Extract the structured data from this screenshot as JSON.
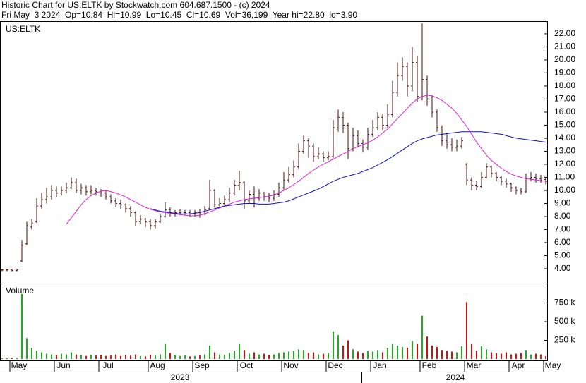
{
  "header": {
    "title": "Historic Chart for US:ELTK by Stockwatch.com 604.687.1500 - (c) 2024",
    "quote": "Fri May  3 2024  Op=10.84  Hi=10.99  Lo=10.45  Cl=10.69  Vol=36,199  Year hi=22.80  lo=3.90"
  },
  "chart_data": {
    "type": "ohlc",
    "symbol": "US:ELTK",
    "volume_title": "Volume",
    "years": [
      "2023",
      "2024"
    ],
    "bar_color": "#4a1010",
    "up_color": "#22aa22",
    "down_color": "#cc1111",
    "categories": [
      null,
      null,
      "May",
      null,
      null,
      null,
      null,
      null,
      null,
      null,
      null,
      "Jun",
      null,
      null,
      null,
      null,
      null,
      null,
      null,
      null,
      "Jul",
      null,
      null,
      null,
      null,
      null,
      null,
      null,
      null,
      null,
      "Aug",
      null,
      null,
      null,
      null,
      null,
      null,
      null,
      null,
      "Sep",
      null,
      null,
      null,
      null,
      null,
      null,
      null,
      null,
      "Oct",
      null,
      null,
      null,
      null,
      null,
      null,
      null,
      null,
      "Nov",
      null,
      null,
      null,
      null,
      null,
      null,
      null,
      null,
      "Dec",
      null,
      null,
      null,
      null,
      null,
      null,
      null,
      null,
      "Jan",
      null,
      null,
      null,
      null,
      null,
      null,
      null,
      null,
      null,
      "Feb",
      null,
      null,
      null,
      null,
      null,
      null,
      null,
      null,
      "Mar",
      null,
      null,
      null,
      null,
      null,
      null,
      null,
      null,
      "Apr",
      null,
      null,
      null,
      null,
      null,
      null,
      "May"
    ],
    "open": [
      3.9,
      3.9,
      3.9,
      3.85,
      4.6,
      5.9,
      7.2,
      7.6,
      8.8,
      9.3,
      9.5,
      10.0,
      9.8,
      10.0,
      10.2,
      10.6,
      10.0,
      10.2,
      9.9,
      10.0,
      9.9,
      9.8,
      9.5,
      9.2,
      9.0,
      8.9,
      8.6,
      8.3,
      7.6,
      7.8,
      7.6,
      7.3,
      7.6,
      8.0,
      8.5,
      8.2,
      8.3,
      8.3,
      8.3,
      8.2,
      8.3,
      8.2,
      8.6,
      10.0,
      8.9,
      9.0,
      9.3,
      9.8,
      10.4,
      10.6,
      9.2,
      9.7,
      9.4,
      9.8,
      9.5,
      9.4,
      9.7,
      10.2,
      10.8,
      11.2,
      11.8,
      13.0,
      13.8,
      13.4,
      12.6,
      12.8,
      12.5,
      12.6,
      14.8,
      15.6,
      15.0,
      13.2,
      14.2,
      13.6,
      13.3,
      14.3,
      14.8,
      15.6,
      15.0,
      15.8,
      17.5,
      18.8,
      19.5,
      18.0,
      19.8,
      17.2,
      18.5,
      17.0,
      16.0,
      14.8,
      13.8,
      13.5,
      13.3,
      13.4,
      12.0,
      10.8,
      10.4,
      10.3,
      11.0,
      11.8,
      11.3,
      11.0,
      10.7,
      10.5,
      10.2,
      10.0,
      9.9,
      10.9,
      11.0,
      10.9,
      10.84
    ],
    "high": [
      4.0,
      4.0,
      3.95,
      4.0,
      6.2,
      7.6,
      7.8,
      9.4,
      9.8,
      10.2,
      10.4,
      10.3,
      10.3,
      10.6,
      11.0,
      10.9,
      10.5,
      10.4,
      10.4,
      10.2,
      10.1,
      10.0,
      9.7,
      9.4,
      9.3,
      9.0,
      8.8,
      8.4,
      8.1,
      7.9,
      7.8,
      7.8,
      8.2,
      9.1,
      8.7,
      8.5,
      8.6,
      8.5,
      8.5,
      8.5,
      8.6,
      8.8,
      10.8,
      10.1,
      9.4,
      9.6,
      10.2,
      10.8,
      11.5,
      10.7,
      10.0,
      10.3,
      10.1,
      9.9,
      9.8,
      10.0,
      10.6,
      11.4,
      11.8,
      12.3,
      13.6,
      14.2,
      14.0,
      13.6,
      13.3,
      13.0,
      13.0,
      15.4,
      16.2,
      16.0,
      15.2,
      14.8,
      14.6,
      13.9,
      14.8,
      15.4,
      16.0,
      15.9,
      16.6,
      18.4,
      19.8,
      20.2,
      19.8,
      21.0,
      20.3,
      22.8,
      18.8,
      17.3,
      16.2,
      15.0,
      14.4,
      14.0,
      13.9,
      14.1,
      12.1,
      11.0,
      10.7,
      11.4,
      12.1,
      11.9,
      11.4,
      11.1,
      10.9,
      10.6,
      10.3,
      10.2,
      11.3,
      11.4,
      11.3,
      11.2,
      10.99
    ],
    "low": [
      3.8,
      3.8,
      3.8,
      3.8,
      4.5,
      5.8,
      7.0,
      7.5,
      8.6,
      9.0,
      9.3,
      9.5,
      9.6,
      9.8,
      10.1,
      9.8,
      9.7,
      9.6,
      9.7,
      9.6,
      9.5,
      9.3,
      9.0,
      8.7,
      8.6,
      8.3,
      8.0,
      7.3,
      7.4,
      7.2,
      7.0,
      7.1,
      7.5,
      7.9,
      8.0,
      8.0,
      8.1,
      8.1,
      8.0,
      8.0,
      7.9,
      8.1,
      8.5,
      8.7,
      8.7,
      8.9,
      9.1,
      9.6,
      10.0,
      8.6,
      9.0,
      8.7,
      9.2,
      9.2,
      9.1,
      9.2,
      9.5,
      10.0,
      10.6,
      11.0,
      11.6,
      12.8,
      12.5,
      12.2,
      12.4,
      12.2,
      12.3,
      12.5,
      14.5,
      14.4,
      12.4,
      13.0,
      13.3,
      12.9,
      13.1,
      14.1,
      14.6,
      14.6,
      14.8,
      15.6,
      17.2,
      18.4,
      17.2,
      17.6,
      16.8,
      16.9,
      16.5,
      15.6,
      14.5,
      13.4,
      13.2,
      13.0,
      13.0,
      13.2,
      10.4,
      10.0,
      10.0,
      10.2,
      10.9,
      11.0,
      10.7,
      10.4,
      10.2,
      9.9,
      9.7,
      9.7,
      9.8,
      10.7,
      10.6,
      10.6,
      10.45
    ],
    "close": [
      3.9,
      3.9,
      3.85,
      3.9,
      5.8,
      7.3,
      7.5,
      8.8,
      9.3,
      9.5,
      10.0,
      9.8,
      10.0,
      10.2,
      10.6,
      10.0,
      10.2,
      9.9,
      10.0,
      9.9,
      9.8,
      9.5,
      9.2,
      9.0,
      8.9,
      8.6,
      8.3,
      7.6,
      7.8,
      7.6,
      7.3,
      7.6,
      8.0,
      8.5,
      8.2,
      8.3,
      8.3,
      8.3,
      8.2,
      8.3,
      8.2,
      8.5,
      10.0,
      8.9,
      9.0,
      9.3,
      9.8,
      10.4,
      10.6,
      9.2,
      9.7,
      9.4,
      9.8,
      9.5,
      9.4,
      9.7,
      10.2,
      10.8,
      11.2,
      11.8,
      13.0,
      13.8,
      13.4,
      12.6,
      12.8,
      12.5,
      12.6,
      14.8,
      15.6,
      15.0,
      13.2,
      14.2,
      13.6,
      13.3,
      14.3,
      14.8,
      15.6,
      15.0,
      15.8,
      17.5,
      18.8,
      19.5,
      18.0,
      19.8,
      17.2,
      18.5,
      17.0,
      16.0,
      14.8,
      13.8,
      13.5,
      13.3,
      13.4,
      13.8,
      10.8,
      10.4,
      10.3,
      11.0,
      11.8,
      11.3,
      11.0,
      10.7,
      10.5,
      10.2,
      10.0,
      9.9,
      10.9,
      11.0,
      10.9,
      10.8,
      10.69
    ],
    "volume": [
      10000,
      12000,
      8000,
      15000,
      870000,
      280000,
      150000,
      110000,
      90000,
      70000,
      60000,
      50000,
      70000,
      60000,
      90000,
      60000,
      50000,
      40000,
      55000,
      45000,
      50000,
      40000,
      45000,
      60000,
      40000,
      50000,
      45000,
      60000,
      40000,
      35000,
      50000,
      45000,
      60000,
      200000,
      80000,
      50000,
      40000,
      45000,
      35000,
      40000,
      45000,
      60000,
      180000,
      90000,
      60000,
      55000,
      80000,
      110000,
      200000,
      120000,
      70000,
      90000,
      60000,
      70000,
      50000,
      60000,
      80000,
      90000,
      100000,
      110000,
      130000,
      120000,
      80000,
      90000,
      60000,
      70000,
      80000,
      370000,
      320000,
      180000,
      250000,
      130000,
      100000,
      80000,
      110000,
      100000,
      120000,
      90000,
      150000,
      200000,
      180000,
      160000,
      150000,
      240000,
      200000,
      580000,
      300000,
      180000,
      160000,
      120000,
      110000,
      100000,
      90000,
      170000,
      760000,
      200000,
      110000,
      170000,
      130000,
      90000,
      80000,
      70000,
      90000,
      60000,
      70000,
      80000,
      120000,
      60000,
      70000,
      60000,
      36199
    ],
    "series": [
      {
        "color": "#e020d0",
        "values": [
          null,
          null,
          null,
          null,
          null,
          null,
          null,
          null,
          null,
          null,
          null,
          null,
          null,
          7.4,
          7.9,
          8.4,
          8.9,
          9.3,
          9.6,
          9.8,
          9.95,
          10.0,
          9.9,
          9.8,
          9.65,
          9.5,
          9.3,
          9.1,
          8.9,
          8.7,
          8.55,
          8.45,
          8.35,
          8.3,
          8.25,
          8.2,
          8.15,
          8.1,
          8.05,
          8.05,
          8.1,
          8.2,
          8.35,
          8.5,
          8.65,
          8.8,
          8.95,
          9.1,
          9.2,
          9.3,
          9.35,
          9.4,
          9.45,
          9.5,
          9.55,
          9.65,
          9.8,
          10.0,
          10.2,
          10.45,
          10.7,
          11.0,
          11.3,
          11.55,
          11.8,
          12.0,
          12.2,
          12.4,
          12.6,
          12.8,
          13.0,
          13.2,
          13.35,
          13.5,
          13.65,
          13.85,
          14.1,
          14.4,
          14.7,
          15.1,
          15.5,
          15.9,
          16.3,
          16.7,
          17.0,
          17.2,
          17.3,
          17.25,
          17.1,
          16.9,
          16.6,
          16.3,
          15.9,
          15.4,
          14.9,
          14.3,
          13.7,
          13.2,
          12.7,
          12.3,
          12.0,
          11.7,
          11.45,
          11.25,
          11.1,
          11.0,
          10.9,
          10.85,
          10.8,
          10.75,
          10.7
        ]
      },
      {
        "color": "#1010c0",
        "values": [
          null,
          null,
          null,
          null,
          null,
          null,
          null,
          null,
          null,
          null,
          null,
          null,
          null,
          null,
          null,
          null,
          null,
          null,
          null,
          null,
          null,
          null,
          null,
          null,
          null,
          null,
          null,
          null,
          null,
          null,
          8.6,
          8.5,
          8.4,
          8.35,
          8.3,
          8.25,
          8.2,
          8.2,
          8.2,
          8.25,
          8.3,
          8.4,
          8.5,
          8.6,
          8.7,
          8.8,
          8.85,
          8.9,
          8.95,
          9.0,
          9.0,
          9.0,
          8.95,
          8.95,
          8.95,
          9.0,
          9.05,
          9.1,
          9.2,
          9.35,
          9.5,
          9.65,
          9.8,
          9.95,
          10.1,
          10.3,
          10.5,
          10.7,
          10.85,
          11.0,
          11.1,
          11.2,
          11.3,
          11.45,
          11.6,
          11.75,
          11.95,
          12.15,
          12.35,
          12.6,
          12.85,
          13.1,
          13.35,
          13.6,
          13.8,
          13.95,
          14.05,
          14.15,
          14.25,
          14.3,
          14.35,
          14.4,
          14.45,
          14.5,
          14.5,
          14.5,
          14.5,
          14.5,
          14.45,
          14.4,
          14.35,
          14.3,
          14.2,
          14.1,
          14.0,
          13.95,
          13.9,
          13.85,
          13.8,
          13.75,
          13.7
        ]
      }
    ],
    "ylim": [
      2.97,
      22.97
    ],
    "yticks": [
      {
        "value": 4,
        "label": "4.00"
      },
      {
        "value": 5,
        "label": "5.00"
      },
      {
        "value": 6,
        "label": "6.00"
      },
      {
        "value": 7,
        "label": "7.00"
      },
      {
        "value": 8,
        "label": "8.00"
      },
      {
        "value": 9,
        "label": "9.00"
      },
      {
        "value": 10,
        "label": "10.00"
      },
      {
        "value": 11,
        "label": "11.00"
      },
      {
        "value": 12,
        "label": "12.00"
      },
      {
        "value": 13,
        "label": "13.00"
      },
      {
        "value": 14,
        "label": "14.00"
      },
      {
        "value": 15,
        "label": "15.00"
      },
      {
        "value": 16,
        "label": "16.00"
      },
      {
        "value": 17,
        "label": "17.00"
      },
      {
        "value": 18,
        "label": "18.00"
      },
      {
        "value": 19,
        "label": "19.00"
      },
      {
        "value": 20,
        "label": "20.00"
      },
      {
        "value": 21,
        "label": "21.00"
      },
      {
        "value": 22,
        "label": "22.00"
      }
    ],
    "y2lim": [
      0,
      1000000
    ],
    "y2ticks": [
      {
        "value": 250000,
        "label": "250 k"
      },
      {
        "value": 500000,
        "label": "500 k"
      },
      {
        "value": 750000,
        "label": "750 k"
      }
    ]
  }
}
